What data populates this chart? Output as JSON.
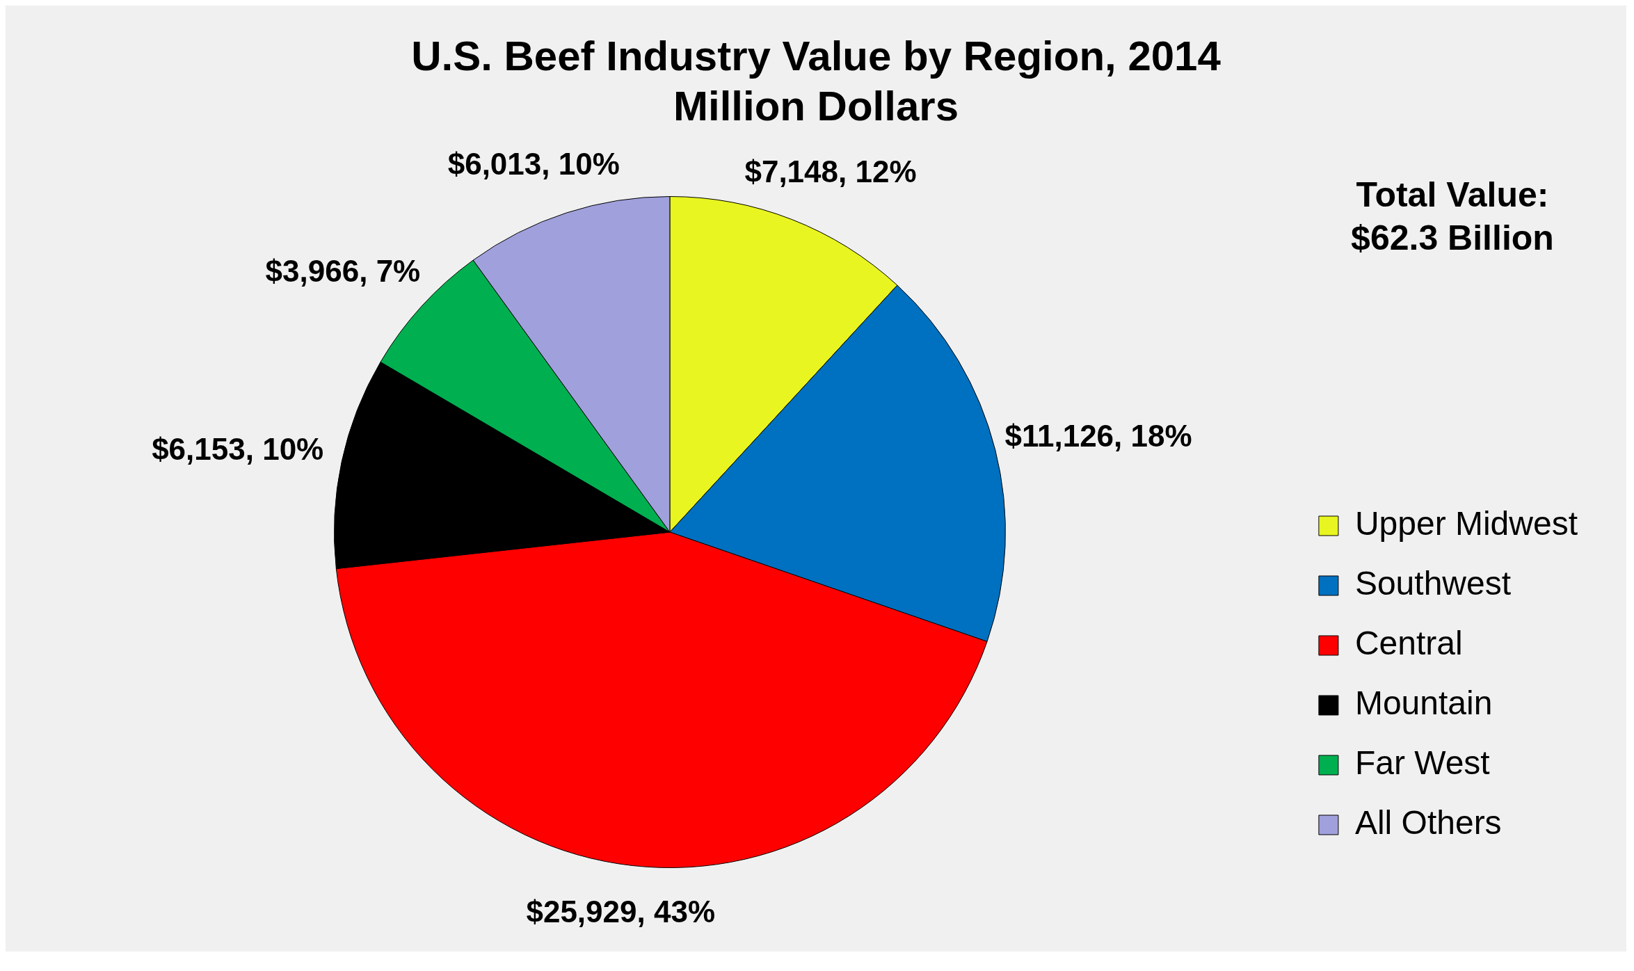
{
  "chart_data": {
    "type": "pie",
    "title": "U.S. Beef Industry Value by Region, 2014",
    "subtitle": "Million Dollars",
    "categories": [
      "Upper Midwest",
      "Southwest",
      "Central",
      "Mountain",
      "Far West",
      "All Others"
    ],
    "values": [
      7148,
      11126,
      25929,
      6153,
      3966,
      6013
    ],
    "colors": [
      "#e8f520",
      "#0070c0",
      "#ff0000",
      "#000000",
      "#00b050",
      "#a0a0dc"
    ],
    "value_labels": [
      "$7,148, 12%",
      "$11,126, 18%",
      "$25,929, 43%",
      "$6,153, 10%",
      "$3,966, 7%",
      "$6,013, 10%"
    ],
    "annotations": [
      "Total Value:\n$62.3 Billion"
    ],
    "legend": "bottom right"
  }
}
